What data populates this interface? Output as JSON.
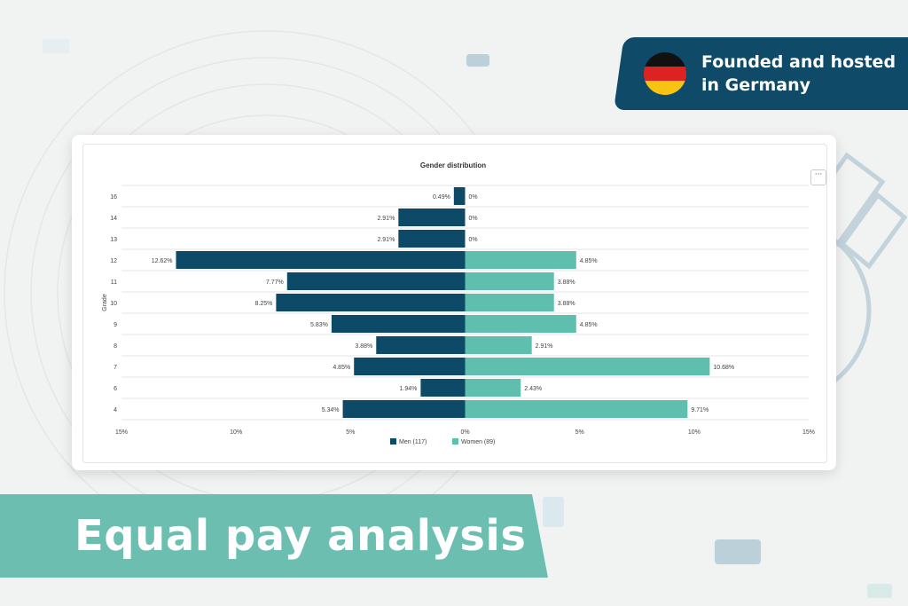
{
  "badge": {
    "line1": "Founded and hosted",
    "line2": "in Germany",
    "flag_colors": [
      "#111111",
      "#dd2222",
      "#f7c413"
    ]
  },
  "banner": {
    "text": "Equal pay analysis"
  },
  "more_button": {
    "label": "···"
  },
  "colors": {
    "men": "#0d4a67",
    "women": "#5fbfae",
    "badge_bg": "#0f4a68",
    "banner_bg": "#6cbfb0"
  },
  "chart_data": {
    "type": "bar",
    "orientation": "horizontal-diverging",
    "title": "Gender distribution",
    "ylabel": "Grade",
    "categories": [
      "16",
      "14",
      "13",
      "12",
      "11",
      "10",
      "9",
      "8",
      "7",
      "6",
      "4"
    ],
    "series": [
      {
        "name": "Men (117)",
        "values": [
          0.49,
          2.91,
          2.91,
          12.62,
          7.77,
          8.25,
          5.83,
          3.88,
          4.85,
          1.94,
          5.34
        ],
        "labels": [
          "0.49%",
          "2.91%",
          "2.91%",
          "12.62%",
          "7.77%",
          "8.25%",
          "5.83%",
          "3.88%",
          "4.85%",
          "1.94%",
          "5.34%"
        ]
      },
      {
        "name": "Women (89)",
        "values": [
          0,
          0,
          0,
          4.85,
          3.88,
          3.88,
          4.85,
          2.91,
          10.68,
          2.43,
          9.71
        ],
        "labels": [
          "0%",
          "0%",
          "0%",
          "4.85%",
          "3.88%",
          "3.88%",
          "4.85%",
          "2.91%",
          "10.68%",
          "2.43%",
          "9.71%"
        ]
      }
    ],
    "xlim": [
      -15,
      15
    ],
    "xticks": [
      "15%",
      "10%",
      "5%",
      "0%",
      "5%",
      "10%",
      "15%"
    ],
    "grid": true,
    "legend_position": "bottom"
  }
}
